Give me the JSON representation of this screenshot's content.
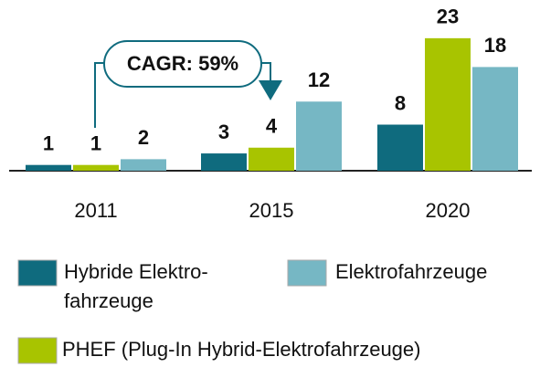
{
  "chart_data": {
    "type": "bar",
    "categories": [
      "2011",
      "2015",
      "2020"
    ],
    "series": [
      {
        "name": "Hybride Elektro-\nfahrzeuge",
        "color": "#0f6b7e",
        "values": [
          1,
          3,
          8
        ]
      },
      {
        "name": "PHEF (Plug-In Hybrid-Elektrofahrzeuge)",
        "color": "#a8c400",
        "values": [
          1,
          4,
          23
        ]
      },
      {
        "name": "Elektrofahrzeuge",
        "color": "#76b7c4",
        "values": [
          2,
          12,
          18
        ]
      }
    ],
    "ylim": [
      0,
      29
    ],
    "annotation": "CAGR: 59%"
  }
}
